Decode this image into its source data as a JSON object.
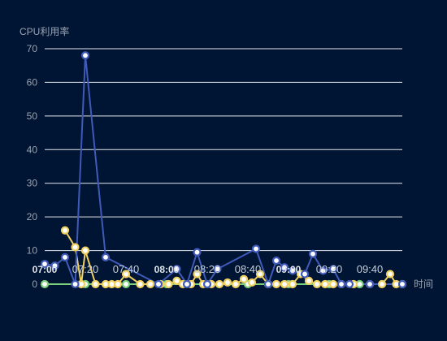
{
  "chart_data": {
    "type": "line",
    "ylabel": "CPU利用率",
    "xlabel": "时间",
    "ylim": [
      0,
      70
    ],
    "yticks": [
      0,
      10,
      20,
      30,
      40,
      50,
      60,
      70
    ],
    "grid": true,
    "x_tick_labels": [
      {
        "label": "07:00",
        "t": 0
      },
      {
        "label": "07:20",
        "t": 20
      },
      {
        "label": "07:40",
        "t": 40
      },
      {
        "label": "08:00",
        "t": 60
      },
      {
        "label": "08:20",
        "t": 80
      },
      {
        "label": "08:40",
        "t": 100
      },
      {
        "label": "09:00",
        "t": 120
      },
      {
        "label": "09:20",
        "t": 140
      },
      {
        "label": "09:40",
        "t": 160
      }
    ],
    "xlim_minutes": [
      0,
      176
    ],
    "series": [
      {
        "color": "#3f5ab8",
        "points": [
          [
            0,
            6
          ],
          [
            5,
            5.5
          ],
          [
            10,
            8
          ],
          [
            15,
            0
          ],
          [
            20,
            68
          ],
          [
            30,
            8
          ],
          [
            56,
            0
          ],
          [
            65,
            4.5
          ],
          [
            70,
            0
          ],
          [
            75,
            9.5
          ],
          [
            80,
            0
          ],
          [
            85,
            4.5
          ],
          [
            104,
            10.5
          ],
          [
            110,
            0
          ],
          [
            114,
            7
          ],
          [
            118,
            5
          ],
          [
            122,
            4
          ],
          [
            128,
            3
          ],
          [
            132,
            9
          ],
          [
            137,
            4
          ],
          [
            142,
            4.5
          ],
          [
            146,
            0
          ],
          [
            150,
            0
          ],
          [
            160,
            0
          ],
          [
            176,
            0
          ]
        ]
      },
      {
        "color": "#f0d060",
        "points": [
          [
            10,
            16
          ],
          [
            15,
            11
          ],
          [
            18,
            0
          ],
          [
            20,
            10
          ],
          [
            25,
            0
          ],
          [
            30,
            0
          ],
          [
            33,
            0
          ],
          [
            36,
            0
          ],
          [
            40,
            3
          ],
          [
            47,
            0
          ],
          [
            52,
            0
          ],
          [
            57,
            0
          ],
          [
            61,
            0
          ],
          [
            65,
            1
          ],
          [
            68,
            0
          ],
          [
            72,
            0
          ],
          [
            75,
            3
          ],
          [
            78,
            0
          ],
          [
            82,
            0
          ],
          [
            86,
            0
          ],
          [
            90,
            0.5
          ],
          [
            94,
            0
          ],
          [
            98,
            1.5
          ],
          [
            102,
            0.5
          ],
          [
            106,
            3
          ],
          [
            110,
            0
          ],
          [
            114,
            0
          ],
          [
            118,
            0
          ],
          [
            122,
            0
          ],
          [
            126,
            3
          ],
          [
            130,
            1
          ],
          [
            134,
            0
          ],
          [
            138,
            0
          ],
          [
            142,
            0
          ],
          [
            146,
            0
          ],
          [
            152,
            0
          ],
          [
            160,
            0
          ],
          [
            166,
            0
          ],
          [
            170,
            3
          ],
          [
            173,
            0
          ],
          [
            176,
            0
          ]
        ]
      },
      {
        "color": "#7ccf7c",
        "points": [
          [
            0,
            0
          ],
          [
            20,
            0
          ],
          [
            40,
            0
          ],
          [
            60,
            0
          ],
          [
            80,
            0
          ],
          [
            100,
            0
          ],
          [
            110,
            0
          ],
          [
            120,
            0
          ],
          [
            140,
            0
          ],
          [
            155,
            0
          ],
          [
            176,
            0
          ]
        ]
      }
    ]
  }
}
